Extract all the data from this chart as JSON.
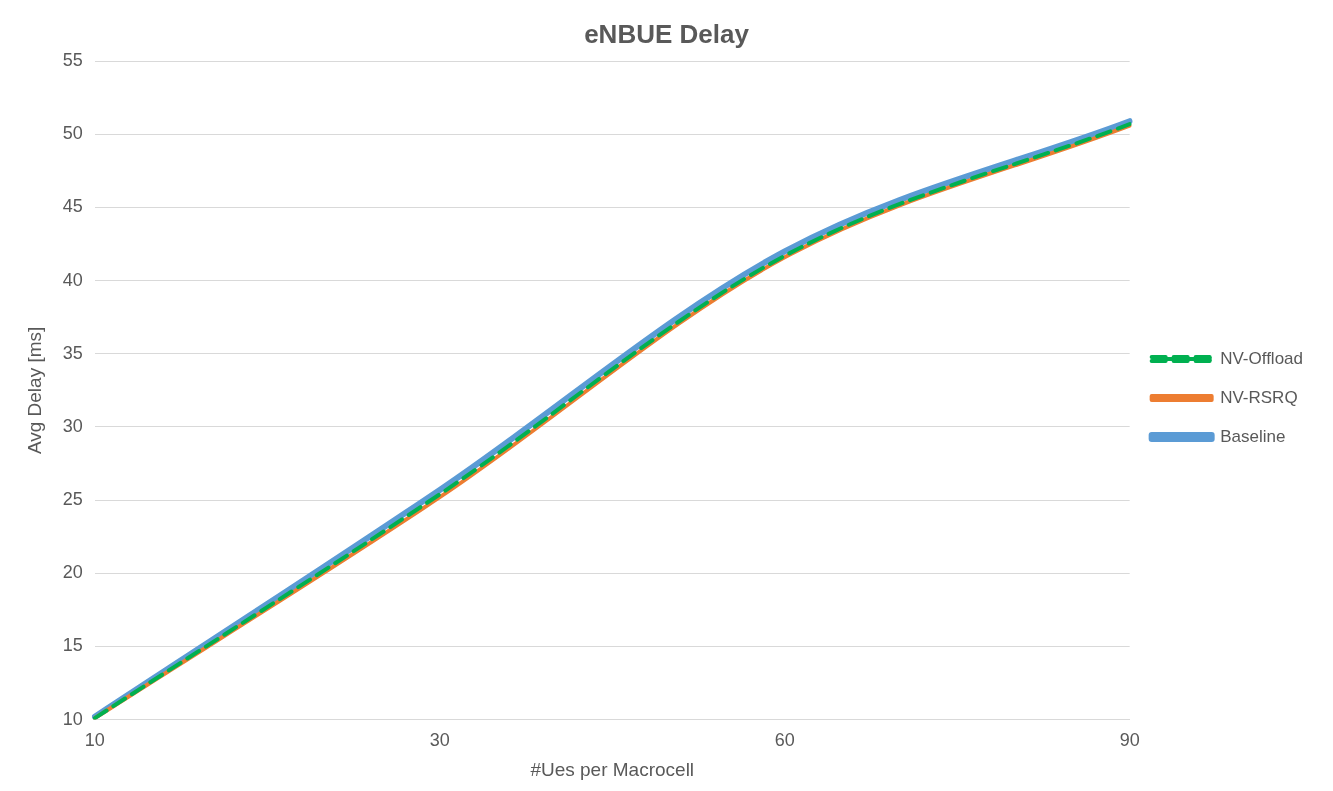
{
  "chart_data": {
    "type": "line",
    "title": "eNBUE Delay",
    "xlabel": "#Ues per Macrocell",
    "ylabel": "Avg Delay [ms]",
    "categories": [
      "10",
      "30",
      "60",
      "90"
    ],
    "series": [
      {
        "name": "Baseline",
        "color": "#5b9bd5",
        "values": [
          10.2,
          25.7,
          42.0,
          50.9
        ],
        "line_style": "solid"
      },
      {
        "name": "NV-RSRQ",
        "color": "#ed7d31",
        "values": [
          10.1,
          25.2,
          41.6,
          50.6
        ],
        "line_style": "solid"
      },
      {
        "name": "NV-Offload",
        "color": "#00b050",
        "values": [
          10.1,
          25.4,
          41.7,
          50.7
        ],
        "line_style": "dashed"
      }
    ],
    "ylim": [
      10,
      55
    ],
    "yticks": [
      10,
      15,
      20,
      25,
      30,
      35,
      40,
      45,
      50,
      55
    ],
    "grid": "y",
    "legend": "right",
    "marker": "none"
  }
}
